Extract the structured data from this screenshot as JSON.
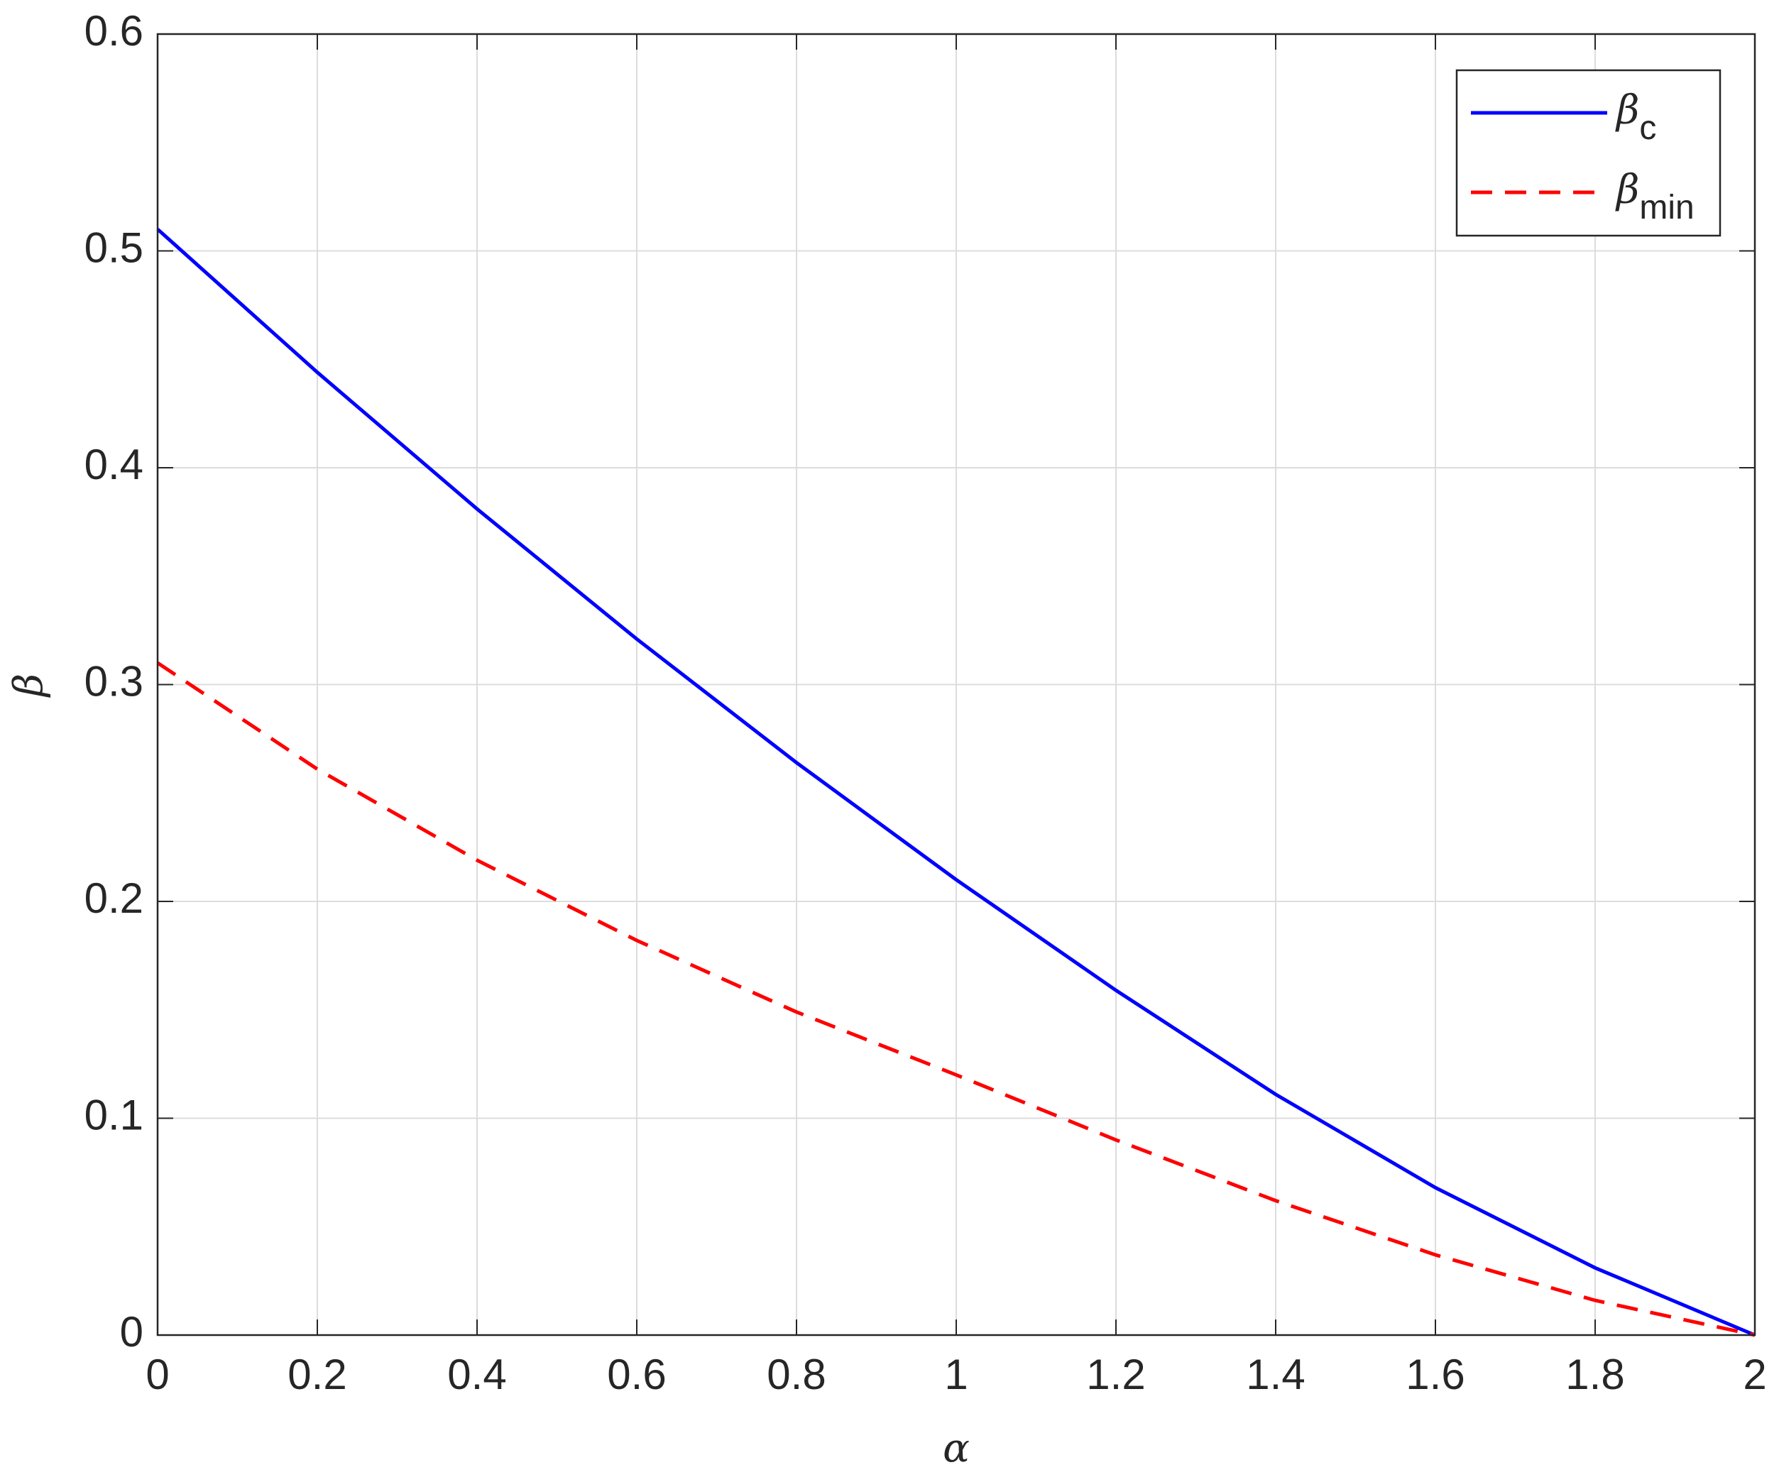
{
  "chart_data": {
    "type": "line",
    "xlabel": "α",
    "ylabel": "β",
    "x": [
      0,
      0.2,
      0.4,
      0.6,
      0.8,
      1.0,
      1.2,
      1.4,
      1.6,
      1.8,
      2.0
    ],
    "series": [
      {
        "name": "βc",
        "color": "#0000ff",
        "dash": "solid",
        "values": [
          0.51,
          0.444,
          0.381,
          0.321,
          0.264,
          0.21,
          0.159,
          0.111,
          0.068,
          0.031,
          0.0
        ]
      },
      {
        "name": "βmin",
        "color": "#ff0000",
        "dash": "dashed",
        "values": [
          0.31,
          0.261,
          0.219,
          0.182,
          0.149,
          0.12,
          0.09,
          0.062,
          0.037,
          0.016,
          0.0
        ]
      }
    ],
    "xlim": [
      0,
      2
    ],
    "ylim": [
      0,
      0.6
    ],
    "xticks": [
      0,
      0.2,
      0.4,
      0.6,
      0.8,
      1,
      1.2,
      1.4,
      1.6,
      1.8,
      2
    ],
    "yticks": [
      0,
      0.1,
      0.2,
      0.3,
      0.4,
      0.5,
      0.6
    ],
    "grid": true,
    "legend": "upper right"
  }
}
